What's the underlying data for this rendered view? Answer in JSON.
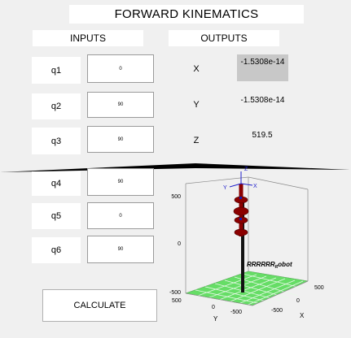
{
  "title": "FORWARD KINEMATICS",
  "inputs_header": "INPUTS",
  "outputs_header": "OUTPUTS",
  "inputs": [
    {
      "label": "q1",
      "value": "0"
    },
    {
      "label": "q2",
      "value": "90"
    },
    {
      "label": "q3",
      "value": "90"
    },
    {
      "label": "q4",
      "value": "90"
    },
    {
      "label": "q5",
      "value": "0"
    },
    {
      "label": "q6",
      "value": "90"
    }
  ],
  "outputs": [
    {
      "label": "X",
      "value": "-1.5308e-14"
    },
    {
      "label": "Y",
      "value": "-1.5308e-14"
    },
    {
      "label": "Z",
      "value": "519.5"
    }
  ],
  "calculate_label": "CALCULATE",
  "plot": {
    "robot_name_main": "RRRRRR",
    "robot_name_sub": "R",
    "robot_name_end": "obot",
    "z_ticks": [
      "500",
      "0",
      "-500"
    ],
    "y_ticks": [
      "500",
      "0",
      "-500"
    ],
    "x_ticks": [
      "500",
      "0",
      "-500"
    ],
    "x_axis_label": "X",
    "y_axis_label": "Y",
    "frame_labels": {
      "top_z": "Z",
      "left_y": "Y",
      "right_x": "X"
    }
  },
  "colors": {
    "background": "#f0f0f0",
    "highlight": "#c8c8c8",
    "floor_green": "#66dd66",
    "link_red": "#8b0000"
  }
}
